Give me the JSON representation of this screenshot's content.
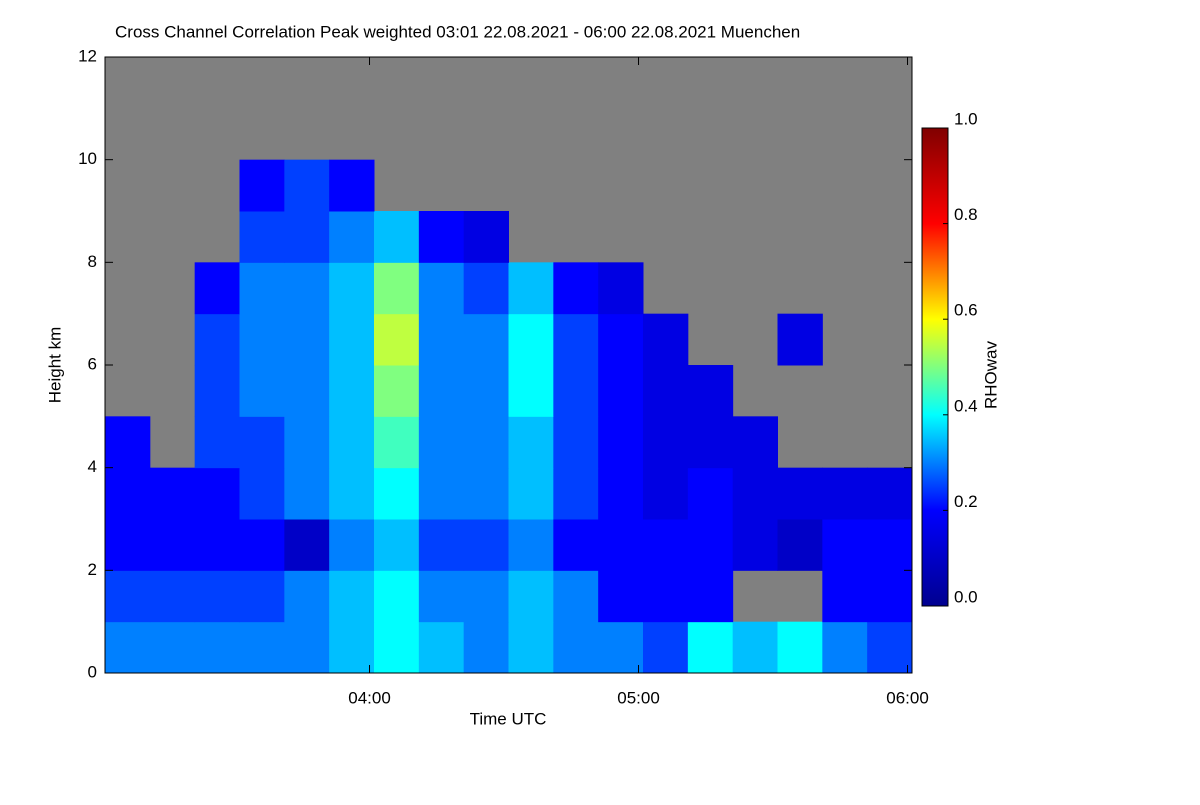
{
  "chart_data": {
    "type": "heatmap",
    "title": "Cross Channel Correlation Peak weighted   03:01 22.08.2021 - 06:00 22.08.2021 Muenchen",
    "x_label": "Time UTC",
    "y_label": "Height km",
    "colorbar_label": "RHOwav",
    "x_bins": [
      181,
      191,
      201,
      211,
      221,
      231,
      241,
      251,
      261,
      271,
      281,
      291,
      301,
      311,
      321,
      331,
      341,
      351,
      361
    ],
    "y_bins": [
      0,
      1,
      2,
      3,
      4,
      5,
      6,
      7,
      8,
      9,
      10,
      11,
      12
    ],
    "z": [
      [
        0.3,
        0.3,
        0.3,
        0.3,
        0.3,
        0.35,
        0.4,
        0.35,
        0.3,
        0.35,
        0.3,
        0.3,
        0.25,
        0.4,
        0.35,
        0.4,
        0.3,
        0.25
      ],
      [
        0.25,
        0.25,
        0.25,
        0.25,
        0.3,
        0.35,
        0.4,
        0.3,
        0.3,
        0.35,
        0.3,
        0.2,
        0.2,
        0.2,
        null,
        null,
        0.2,
        0.2
      ],
      [
        0.2,
        0.2,
        0.2,
        0.2,
        0.1,
        0.3,
        0.35,
        0.25,
        0.25,
        0.3,
        0.2,
        0.2,
        0.2,
        0.2,
        0.15,
        0.1,
        0.2,
        0.2
      ],
      [
        0.2,
        0.2,
        0.2,
        0.25,
        0.3,
        0.35,
        0.4,
        0.3,
        0.3,
        0.35,
        0.25,
        0.2,
        0.15,
        0.2,
        0.15,
        0.15,
        0.15,
        0.15
      ],
      [
        0.2,
        null,
        0.25,
        0.25,
        0.3,
        0.35,
        0.45,
        0.3,
        0.3,
        0.35,
        0.25,
        0.2,
        0.15,
        0.15,
        0.15,
        null,
        null,
        null
      ],
      [
        null,
        null,
        0.25,
        0.3,
        0.3,
        0.35,
        0.5,
        0.3,
        0.3,
        0.4,
        0.25,
        0.2,
        0.15,
        0.15,
        null,
        null,
        null,
        null
      ],
      [
        null,
        null,
        0.25,
        0.3,
        0.3,
        0.35,
        0.55,
        0.3,
        0.3,
        0.4,
        0.25,
        0.2,
        0.15,
        null,
        null,
        0.15,
        null,
        null
      ],
      [
        null,
        null,
        0.2,
        0.3,
        0.3,
        0.35,
        0.5,
        0.3,
        0.25,
        0.35,
        0.2,
        0.15,
        null,
        null,
        null,
        null,
        null,
        null
      ],
      [
        null,
        null,
        null,
        0.25,
        0.25,
        0.3,
        0.35,
        0.2,
        0.15,
        null,
        null,
        null,
        null,
        null,
        null,
        null,
        null,
        null
      ],
      [
        null,
        null,
        null,
        0.2,
        0.25,
        0.2,
        null,
        null,
        null,
        null,
        null,
        null,
        null,
        null,
        null,
        null,
        null,
        null
      ],
      [
        null,
        null,
        null,
        null,
        null,
        null,
        null,
        null,
        null,
        null,
        null,
        null,
        null,
        null,
        null,
        null,
        null,
        null
      ],
      [
        null,
        null,
        null,
        null,
        null,
        null,
        null,
        null,
        null,
        null,
        null,
        null,
        null,
        null,
        null,
        null,
        null,
        null
      ]
    ],
    "xlim": [
      181,
      361
    ],
    "xticks": [
      {
        "value": 240,
        "label": "04:00"
      },
      {
        "value": 300,
        "label": "05:00"
      },
      {
        "value": 360,
        "label": "06:00"
      }
    ],
    "ylim": [
      0,
      12
    ],
    "yticks": [
      0,
      2,
      4,
      6,
      8,
      10,
      12
    ],
    "zlim": [
      0,
      1
    ],
    "zticks": [
      {
        "value": 0,
        "label": "0.0"
      },
      {
        "value": 0.2,
        "label": "0.2"
      },
      {
        "value": 0.4,
        "label": "0.4"
      },
      {
        "value": 0.6,
        "label": "0.6"
      },
      {
        "value": 0.8,
        "label": "0.8"
      },
      {
        "value": 1,
        "label": "1.0"
      }
    ],
    "colorscale": [
      "#00008f",
      "#0000ff",
      "#00ffff",
      "#ffff00",
      "#ff0000",
      "#800000"
    ],
    "missing_color": "#808080"
  }
}
